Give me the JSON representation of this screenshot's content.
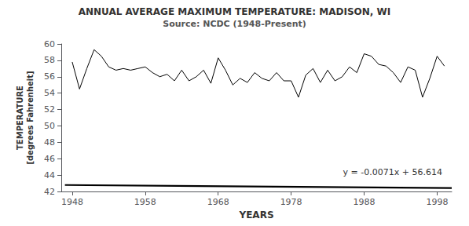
{
  "chart_data": {
    "type": "line",
    "title": "ANNUAL AVERAGE MAXIMUM TEMPERATURE: MADISON, WI",
    "subtitle": "Source: NCDC (1948-Present)",
    "xlabel": "YEARS",
    "ylabel": "TEMPERATURE\n[degrees Fahrenheit]",
    "annotation": "y = -0.0071x + 56.614",
    "xlim": [
      1946.5,
      2000
    ],
    "xticks": [
      1948,
      1958,
      1968,
      1978,
      1988,
      1998
    ],
    "ylim": [
      42,
      60
    ],
    "yticks": [
      42,
      44,
      46,
      48,
      50,
      52,
      54,
      56,
      58,
      60
    ],
    "grid": false,
    "series": [
      {
        "color": "#000000",
        "x": [
          1948,
          1949,
          1950,
          1951,
          1952,
          1953,
          1954,
          1955,
          1956,
          1957,
          1958,
          1959,
          1960,
          1961,
          1962,
          1963,
          1964,
          1965,
          1966,
          1967,
          1968,
          1969,
          1970,
          1971,
          1972,
          1973,
          1974,
          1975,
          1976,
          1977,
          1978,
          1979,
          1980,
          1981,
          1982,
          1983,
          1984,
          1985,
          1986,
          1987,
          1988,
          1989,
          1990,
          1991,
          1992,
          1993,
          1994,
          1995,
          1996,
          1997,
          1998,
          1999
        ],
        "values": [
          57.8,
          54.5,
          57.0,
          59.3,
          58.5,
          57.2,
          56.8,
          57.0,
          56.8,
          57.0,
          57.2,
          56.5,
          56.0,
          56.3,
          55.5,
          56.8,
          55.5,
          56.0,
          56.8,
          55.2,
          58.3,
          56.8,
          55.0,
          55.8,
          55.3,
          56.5,
          55.8,
          55.5,
          56.5,
          55.5,
          55.5,
          53.5,
          56.2,
          57.0,
          55.3,
          56.8,
          55.5,
          56.0,
          57.2,
          56.5,
          58.8,
          58.5,
          57.5,
          57.3,
          56.5,
          55.3,
          57.2,
          56.8,
          53.5,
          55.8,
          58.5,
          57.3
        ]
      },
      {
        "color": "#000000",
        "x": [
          1947,
          2000
        ],
        "values": [
          42.7903,
          42.414
        ]
      }
    ]
  }
}
